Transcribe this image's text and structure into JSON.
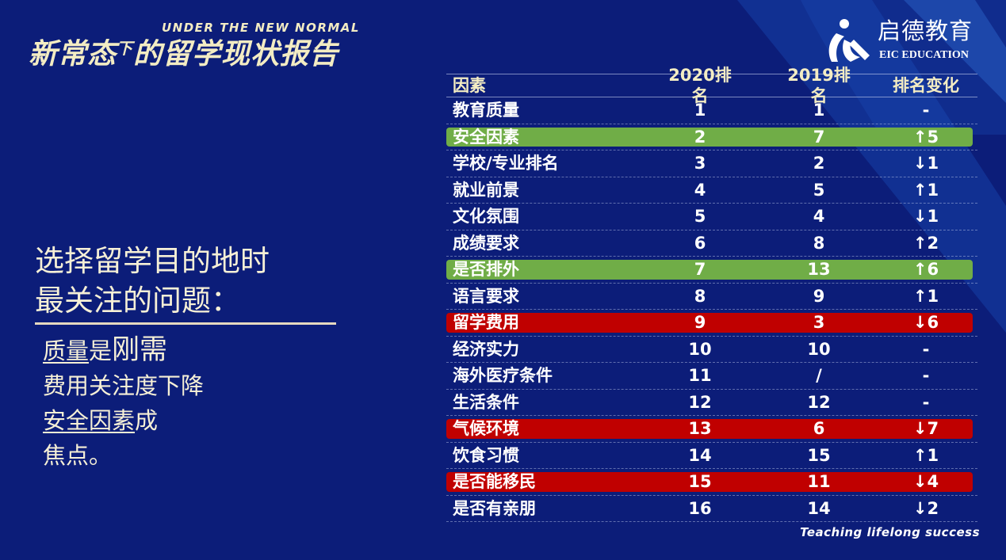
{
  "header": {
    "title_cn_prefix": "新常态",
    "title_cn_small": "下",
    "title_cn_suffix": "的留学现状报告",
    "title_en": "UNDER THE NEW NORMAL"
  },
  "logo": {
    "name_cn": "启德教育",
    "name_en": "EIC EDUCATION",
    "icon": "eic-logo-icon"
  },
  "left": {
    "question_line1": "选择留学目的地时",
    "question_line2": "最关注的问题：",
    "point1_a": "质量",
    "point1_b": "是",
    "point1_c": "刚需",
    "point2": "费用关注度下降",
    "point3_a": "安全因素",
    "point3_b": "成",
    "point4": "焦点。"
  },
  "colors": {
    "background": "#0c1d79",
    "header_text": "#f3ecc3",
    "highlight_up": "#70ad47",
    "highlight_down": "#c00000"
  },
  "table": {
    "headers": [
      "因素",
      "2020排名",
      "2019排名",
      "排名变化"
    ],
    "rows": [
      {
        "factor": "教育质量",
        "r2020": "1",
        "r2019": "1",
        "change": "-",
        "highlight": ""
      },
      {
        "factor": "安全因素",
        "r2020": "2",
        "r2019": "7",
        "change": "↑5",
        "highlight": "green"
      },
      {
        "factor": "学校/专业排名",
        "r2020": "3",
        "r2019": "2",
        "change": "↓1",
        "highlight": ""
      },
      {
        "factor": "就业前景",
        "r2020": "4",
        "r2019": "5",
        "change": "↑1",
        "highlight": ""
      },
      {
        "factor": "文化氛围",
        "r2020": "5",
        "r2019": "4",
        "change": "↓1",
        "highlight": ""
      },
      {
        "factor": "成绩要求",
        "r2020": "6",
        "r2019": "8",
        "change": "↑2",
        "highlight": ""
      },
      {
        "factor": "是否排外",
        "r2020": "7",
        "r2019": "13",
        "change": "↑6",
        "highlight": "green"
      },
      {
        "factor": "语言要求",
        "r2020": "8",
        "r2019": "9",
        "change": "↑1",
        "highlight": ""
      },
      {
        "factor": "留学费用",
        "r2020": "9",
        "r2019": "3",
        "change": "↓6",
        "highlight": "red"
      },
      {
        "factor": "经济实力",
        "r2020": "10",
        "r2019": "10",
        "change": "-",
        "highlight": ""
      },
      {
        "factor": "海外医疗条件",
        "r2020": "11",
        "r2019": "/",
        "change": "-",
        "highlight": ""
      },
      {
        "factor": "生活条件",
        "r2020": "12",
        "r2019": "12",
        "change": "-",
        "highlight": ""
      },
      {
        "factor": "气候环境",
        "r2020": "13",
        "r2019": "6",
        "change": "↓7",
        "highlight": "red"
      },
      {
        "factor": "饮食习惯",
        "r2020": "14",
        "r2019": "15",
        "change": "↑1",
        "highlight": ""
      },
      {
        "factor": "是否能移民",
        "r2020": "15",
        "r2019": "11",
        "change": "↓4",
        "highlight": "red"
      },
      {
        "factor": "是否有亲朋",
        "r2020": "16",
        "r2019": "14",
        "change": "↓2",
        "highlight": ""
      }
    ]
  },
  "footer": {
    "tagline": "Teaching lifelong success"
  }
}
